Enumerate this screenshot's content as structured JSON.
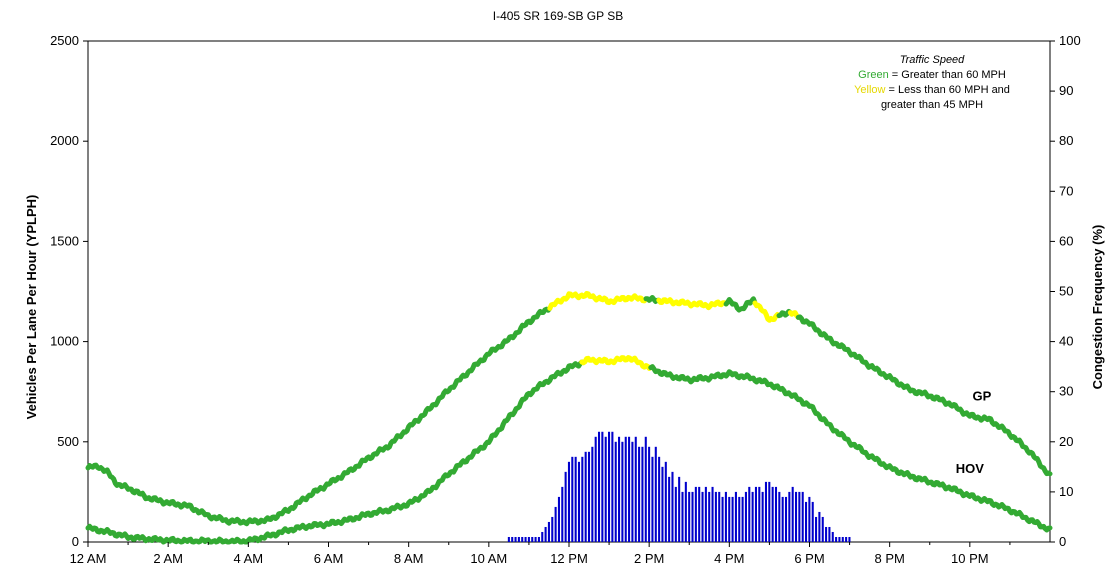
{
  "chart_data": {
    "type": "line",
    "title": "I-405  SR 169-SB     GP SB",
    "ylabel_left": "Vehicles Per Lane Per Hour (YPLPH)",
    "ylabel_right": "Congestion Frequency (%)",
    "ylim_left": [
      0,
      2500
    ],
    "ylim_right": [
      0,
      100
    ],
    "yticks_left": [
      "0",
      "500",
      "1000",
      "1500",
      "2000",
      "2500"
    ],
    "yticks_right": [
      "0",
      "10",
      "20",
      "30",
      "40",
      "50",
      "60",
      "70",
      "80",
      "90",
      "100"
    ],
    "xlim_hours": [
      0,
      24
    ],
    "xticks": [
      {
        "h": 0,
        "label": "12 AM"
      },
      {
        "h": 2,
        "label": "2 AM"
      },
      {
        "h": 4,
        "label": "4 AM"
      },
      {
        "h": 6,
        "label": "6 AM"
      },
      {
        "h": 8,
        "label": "8 AM"
      },
      {
        "h": 10,
        "label": "10 AM"
      },
      {
        "h": 12,
        "label": "12 PM"
      },
      {
        "h": 14,
        "label": "2 PM"
      },
      {
        "h": 16,
        "label": "4 PM"
      },
      {
        "h": 18,
        "label": "6 PM"
      },
      {
        "h": 20,
        "label": "8 PM"
      },
      {
        "h": 22,
        "label": "10 PM"
      }
    ],
    "grid": false,
    "colors": {
      "green": "#33aa33",
      "yellow": "#ffff00",
      "bars": "#0000cc"
    },
    "legend": {
      "placement": "top-right",
      "heading": "Traffic Speed",
      "green_word": "Green",
      "green_text": " = Greater than 60 MPH",
      "yellow_word": "Yellow",
      "yellow_text": " = Less than 60 MPH and",
      "yellow_text2": "greater than 45 MPH"
    },
    "series": [
      {
        "name": "GP",
        "label_hour": 22.3,
        "label_value": 705,
        "points": [
          [
            0,
            370
          ],
          [
            0.25,
            380
          ],
          [
            0.5,
            345
          ],
          [
            0.75,
            285
          ],
          [
            1,
            270
          ],
          [
            1.5,
            220
          ],
          [
            2,
            195
          ],
          [
            2.5,
            180
          ],
          [
            3,
            130
          ],
          [
            3.5,
            105
          ],
          [
            4,
            100
          ],
          [
            4.5,
            110
          ],
          [
            5,
            160
          ],
          [
            5.5,
            230
          ],
          [
            6,
            290
          ],
          [
            6.5,
            350
          ],
          [
            7,
            420
          ],
          [
            7.5,
            480
          ],
          [
            8,
            570
          ],
          [
            8.5,
            660
          ],
          [
            9,
            760
          ],
          [
            9.5,
            850
          ],
          [
            10,
            940
          ],
          [
            10.5,
            1010
          ],
          [
            11,
            1100
          ],
          [
            11.5,
            1170
          ],
          [
            12,
            1230
          ],
          [
            12.5,
            1230
          ],
          [
            13,
            1200
          ],
          [
            13.5,
            1220
          ],
          [
            14,
            1210
          ],
          [
            14.5,
            1200
          ],
          [
            15,
            1190
          ],
          [
            15.5,
            1180
          ],
          [
            16,
            1200
          ],
          [
            16.3,
            1160
          ],
          [
            16.6,
            1210
          ],
          [
            17,
            1110
          ],
          [
            17.5,
            1150
          ],
          [
            18,
            1090
          ],
          [
            18.5,
            1010
          ],
          [
            19,
            950
          ],
          [
            19.5,
            880
          ],
          [
            20,
            820
          ],
          [
            20.5,
            760
          ],
          [
            21,
            730
          ],
          [
            21.5,
            690
          ],
          [
            22,
            630
          ],
          [
            22.5,
            610
          ],
          [
            23,
            540
          ],
          [
            23.5,
            450
          ],
          [
            24,
            330
          ]
        ],
        "yellow_ranges": [
          [
            11.5,
            13.9
          ],
          [
            14.2,
            15.9
          ],
          [
            16.6,
            17.2
          ],
          [
            17.5,
            17.7
          ]
        ]
      },
      {
        "name": "HOV",
        "label_hour": 22.0,
        "label_value": 345,
        "points": [
          [
            0,
            70
          ],
          [
            0.5,
            50
          ],
          [
            1,
            25
          ],
          [
            1.5,
            15
          ],
          [
            2,
            8
          ],
          [
            2.5,
            5
          ],
          [
            3,
            5
          ],
          [
            3.5,
            2
          ],
          [
            4,
            5
          ],
          [
            4.5,
            30
          ],
          [
            5,
            60
          ],
          [
            5.5,
            80
          ],
          [
            6,
            90
          ],
          [
            6.5,
            110
          ],
          [
            7,
            140
          ],
          [
            7.5,
            160
          ],
          [
            8,
            190
          ],
          [
            8.5,
            250
          ],
          [
            9,
            340
          ],
          [
            9.5,
            420
          ],
          [
            10,
            500
          ],
          [
            10.5,
            620
          ],
          [
            11,
            740
          ],
          [
            11.5,
            810
          ],
          [
            12,
            870
          ],
          [
            12.5,
            910
          ],
          [
            13,
            900
          ],
          [
            13.5,
            920
          ],
          [
            14,
            870
          ],
          [
            14.5,
            830
          ],
          [
            15,
            810
          ],
          [
            15.5,
            820
          ],
          [
            16,
            840
          ],
          [
            16.5,
            820
          ],
          [
            17,
            790
          ],
          [
            17.5,
            740
          ],
          [
            18,
            680
          ],
          [
            18.5,
            580
          ],
          [
            19,
            500
          ],
          [
            19.5,
            430
          ],
          [
            20,
            370
          ],
          [
            20.5,
            330
          ],
          [
            21,
            300
          ],
          [
            21.5,
            270
          ],
          [
            22,
            230
          ],
          [
            22.5,
            200
          ],
          [
            23,
            160
          ],
          [
            23.5,
            110
          ],
          [
            24,
            60
          ]
        ],
        "yellow_ranges": [
          [
            12.3,
            14.0
          ]
        ]
      },
      {
        "name": "Congestion Frequency",
        "kind": "bar",
        "x_start_hour": 10.5,
        "step_hours": 0.0833,
        "values": [
          1,
          1,
          1,
          1,
          1,
          1,
          1,
          1,
          1,
          1,
          2,
          3,
          4,
          5,
          7,
          9,
          11,
          14,
          16,
          17,
          17,
          16,
          17,
          18,
          18,
          19,
          21,
          22,
          22,
          21,
          22,
          22,
          20,
          21,
          20,
          21,
          21,
          20,
          21,
          19,
          19,
          21,
          19,
          17,
          19,
          17,
          15,
          16,
          13,
          14,
          11,
          13,
          10,
          12,
          10,
          10,
          11,
          11,
          10,
          11,
          10,
          11,
          10,
          10,
          9,
          10,
          9,
          9,
          10,
          9,
          9,
          10,
          11,
          10,
          11,
          11,
          10,
          12,
          12,
          11,
          11,
          10,
          9,
          9,
          10,
          11,
          10,
          10,
          10,
          8,
          9,
          8,
          5,
          6,
          5,
          3,
          3,
          2,
          1,
          1,
          1,
          1,
          1
        ]
      }
    ]
  }
}
